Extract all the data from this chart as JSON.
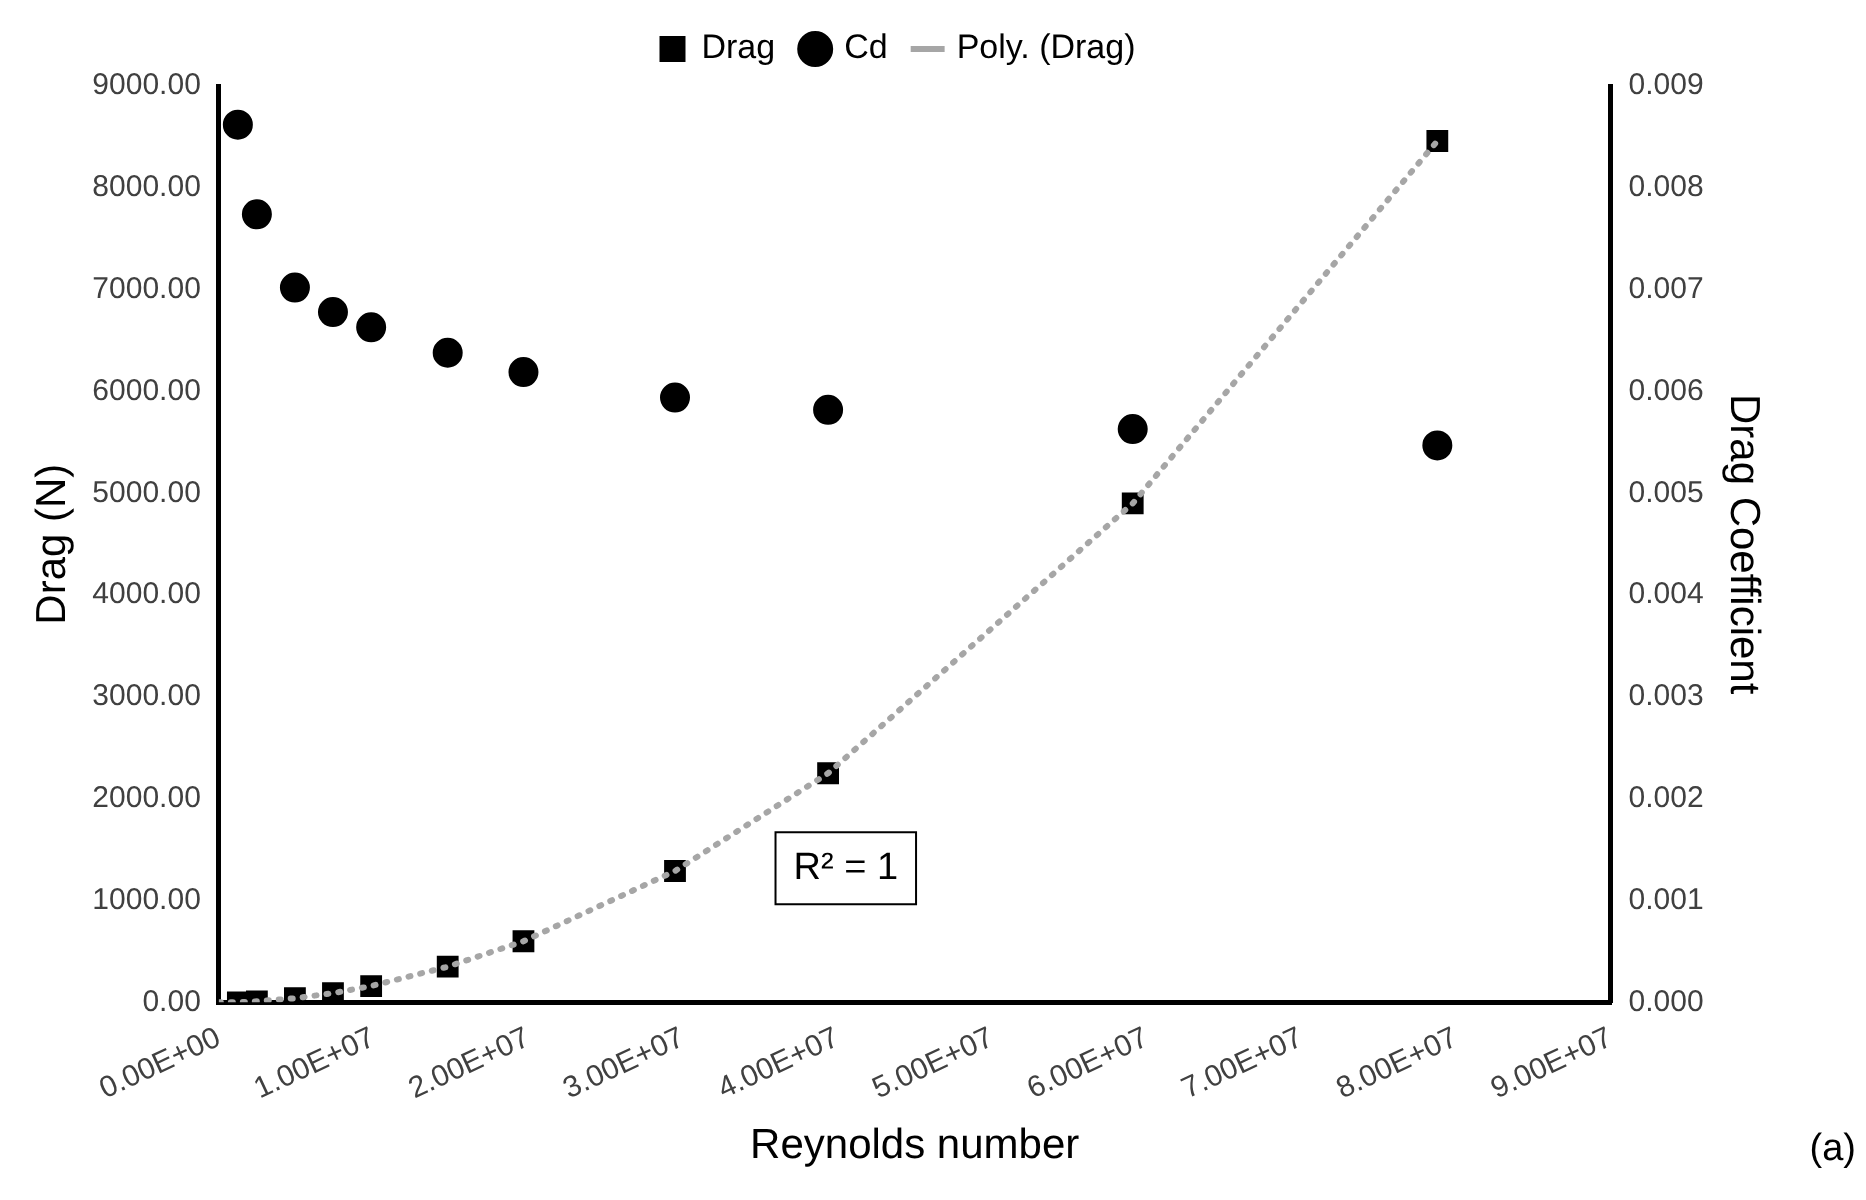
{
  "chart_data": {
    "type": "scatter",
    "xlabel": "Reynolds number",
    "ylabel": "Drag (N)",
    "y2label": "Drag Coefficient",
    "x": [
      1230000,
      2460000,
      4920000,
      7380000,
      9850000,
      14800000,
      19700000,
      29500000,
      39400000,
      59100000,
      78800000
    ],
    "series": [
      {
        "name": "Drag",
        "marker": "square",
        "color": "#000000",
        "values": [
          0,
          10,
          40,
          90,
          160,
          350,
          600,
          1290,
          2250,
          4900,
          8460
        ]
      },
      {
        "name": "Cd",
        "marker": "circle",
        "color": "#000000",
        "axis": "y2",
        "values": [
          0.00862,
          0.00774,
          0.00702,
          0.00678,
          0.00663,
          0.00638,
          0.00619,
          0.00594,
          0.00582,
          0.00563,
          0.00547
        ]
      },
      {
        "name": "Poly. (Drag)",
        "type": "line",
        "marker": "none",
        "line_style": "dotted",
        "color": "#a6a6a6",
        "x": [
          0,
          1230000,
          2460000,
          4920000,
          7380000,
          9850000,
          14800000,
          19700000,
          29500000,
          39400000,
          59100000,
          78800000
        ],
        "values": [
          0,
          0,
          10,
          40,
          90,
          160,
          350,
          600,
          1290,
          2250,
          4900,
          8460
        ]
      }
    ],
    "xlim": [
      0,
      90000000
    ],
    "xticks": [
      {
        "value": 0,
        "label": "0.00E+00"
      },
      {
        "value": 10000000,
        "label": "1.00E+07"
      },
      {
        "value": 20000000,
        "label": "2.00E+07"
      },
      {
        "value": 30000000,
        "label": "3.00E+07"
      },
      {
        "value": 40000000,
        "label": "4.00E+07"
      },
      {
        "value": 50000000,
        "label": "5.00E+07"
      },
      {
        "value": 60000000,
        "label": "6.00E+07"
      },
      {
        "value": 70000000,
        "label": "7.00E+07"
      },
      {
        "value": 80000000,
        "label": "8.00E+07"
      },
      {
        "value": 90000000,
        "label": "9.00E+07"
      }
    ],
    "ylim": [
      0,
      9000
    ],
    "yticks": [
      {
        "value": 0,
        "label": "0.00"
      },
      {
        "value": 1000,
        "label": "1000.00"
      },
      {
        "value": 2000,
        "label": "2000.00"
      },
      {
        "value": 3000,
        "label": "3000.00"
      },
      {
        "value": 4000,
        "label": "4000.00"
      },
      {
        "value": 5000,
        "label": "5000.00"
      },
      {
        "value": 6000,
        "label": "6000.00"
      },
      {
        "value": 7000,
        "label": "7000.00"
      },
      {
        "value": 8000,
        "label": "8000.00"
      },
      {
        "value": 9000,
        "label": "9000.00"
      }
    ],
    "y2lim": [
      0,
      0.009
    ],
    "y2ticks": [
      {
        "value": 0,
        "label": "0.000"
      },
      {
        "value": 0.001,
        "label": "0.001"
      },
      {
        "value": 0.002,
        "label": "0.002"
      },
      {
        "value": 0.003,
        "label": "0.003"
      },
      {
        "value": 0.004,
        "label": "0.004"
      },
      {
        "value": 0.005,
        "label": "0.005"
      },
      {
        "value": 0.006,
        "label": "0.006"
      },
      {
        "value": 0.007,
        "label": "0.007"
      },
      {
        "value": 0.008,
        "label": "0.008"
      },
      {
        "value": 0.009,
        "label": "0.009"
      }
    ],
    "annotations": [
      "R² = 1",
      "(a)"
    ],
    "grid": false,
    "legend": "top"
  }
}
